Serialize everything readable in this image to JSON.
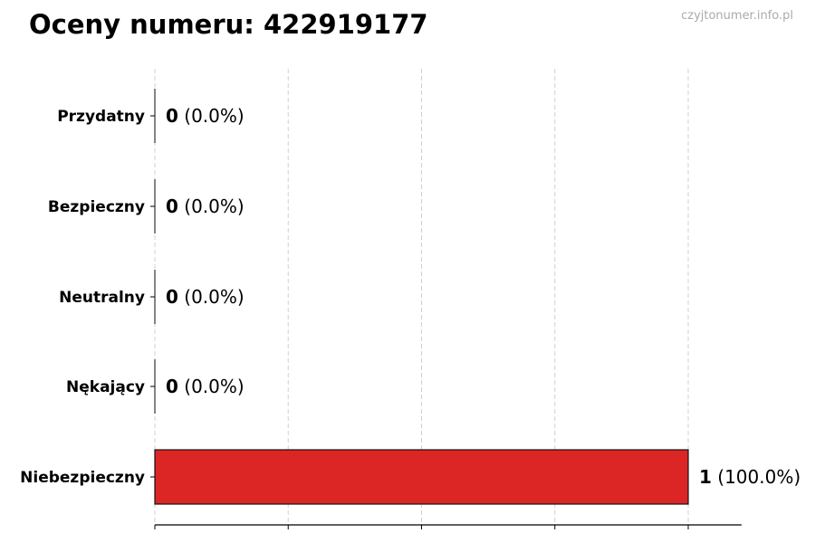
{
  "chart_data": {
    "type": "bar",
    "orientation": "horizontal",
    "title": "Oceny numeru: 422919177",
    "categories": [
      "Przydatny",
      "Bezpieczny",
      "Neutralny",
      "Nękający",
      "Niebezpieczny"
    ],
    "values": [
      0,
      0,
      0,
      0,
      1
    ],
    "labels": [
      "(0.0%)",
      "(0.0%)",
      "(0.0%)",
      "(0.0%)",
      "(100.0%)"
    ],
    "colors": [
      "#2ca02c",
      "#2ca02c",
      "#999999",
      "#e07020",
      "#dc2626"
    ],
    "xlim": [
      0,
      1.1
    ],
    "x_gridlines": [
      0,
      0.25,
      0.5,
      0.75,
      1
    ],
    "grid": "x dashed",
    "xlabel": "",
    "ylabel": ""
  },
  "watermark": "czyjtonumer.info.pl"
}
